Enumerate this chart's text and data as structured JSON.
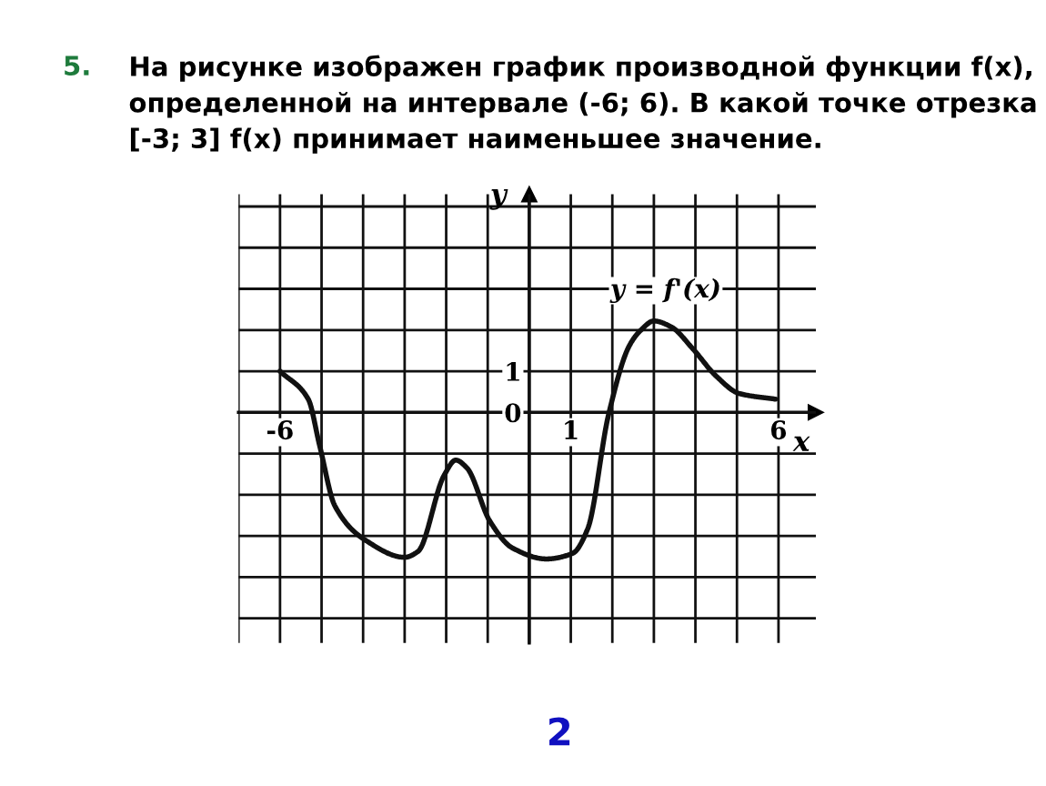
{
  "chart_data": {
    "type": "line",
    "title": "На рисунке изображен график производной функции f(x), определенной на интервале (-6; 6). В какой точке отрезка [-3; 3] f(x) принимает наименьшее значение.",
    "xlabel": "x",
    "ylabel": "y",
    "annotations": [
      "5.",
      "y = f'(x)",
      "2"
    ],
    "series": [
      {
        "color": "#111111",
        "x": [
          -6,
          -5.32,
          -5.05,
          -4.68,
          -3.95,
          -3,
          -2.68,
          -2.05,
          -1.77,
          -1.5,
          -0.95,
          -0.41,
          0.41,
          1.05,
          1.41,
          1.91,
          2.41,
          2.68,
          3,
          3.41,
          3.95,
          4.5,
          5.05,
          5.93
        ],
        "values": [
          1,
          0.32,
          -0.79,
          -2.27,
          -3.1,
          -3.52,
          -3.38,
          -1.53,
          -1.16,
          -1.35,
          -2.64,
          -3.29,
          -3.56,
          -3.42,
          -2.82,
          -0.05,
          1.62,
          1.99,
          2.22,
          2.08,
          1.53,
          0.88,
          0.46,
          0.32
        ]
      }
    ],
    "xlim": [
      -7,
      6.9
    ],
    "ylim": [
      -5.6,
      5.3
    ],
    "xticks": [
      {
        "value": -7,
        "label": null
      },
      -6,
      {
        "value": -5,
        "label": null
      },
      {
        "value": -4,
        "label": null
      },
      {
        "value": -3,
        "label": null
      },
      {
        "value": -2,
        "label": null
      },
      {
        "value": -1,
        "label": null
      },
      {
        "value": 0,
        "label": null
      },
      1,
      {
        "value": 2,
        "label": null
      },
      {
        "value": 3,
        "label": null
      },
      {
        "value": 4,
        "label": null
      },
      {
        "value": 5,
        "label": null
      },
      6
    ],
    "yticks": [
      {
        "value": -5,
        "label": null
      },
      {
        "value": -4,
        "label": null
      },
      {
        "value": -3,
        "label": null
      },
      {
        "value": -2,
        "label": null
      },
      {
        "value": -1,
        "label": null
      },
      0,
      1,
      {
        "value": 2,
        "label": null
      },
      {
        "value": 3,
        "label": null
      },
      {
        "value": 4,
        "label": null
      },
      {
        "value": 5,
        "label": null
      }
    ],
    "grid": true,
    "line_style": "solid"
  }
}
